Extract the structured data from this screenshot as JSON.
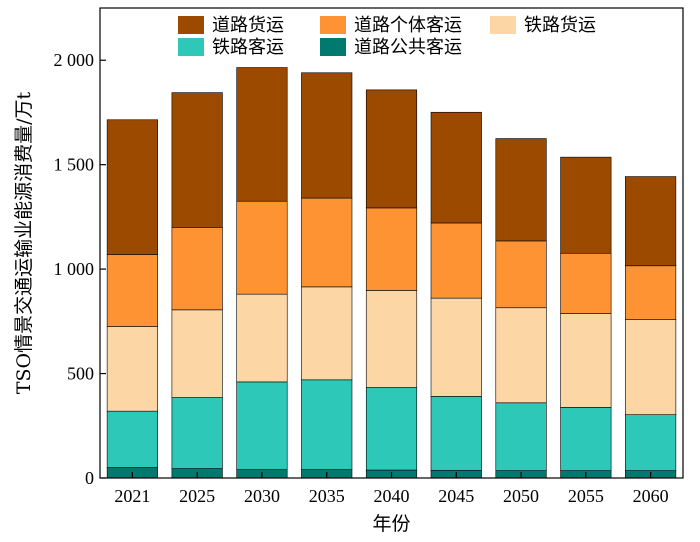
{
  "chart_data": {
    "type": "bar",
    "stacked": true,
    "xlabel": "年份",
    "ylabel": "TSO情景交通运输业能源消费量/万t",
    "categories": [
      "2021",
      "2025",
      "2030",
      "2035",
      "2040",
      "2045",
      "2050",
      "2055",
      "2060"
    ],
    "ylim": [
      0,
      2250
    ],
    "yticks": [
      0,
      500,
      1000,
      1500,
      2000
    ],
    "ytick_labels": [
      "0",
      "500",
      "1 000",
      "1 500",
      "2 000"
    ],
    "series": [
      {
        "name": "道路公共客运",
        "color": "#007a6e",
        "values": [
          50,
          45,
          40,
          40,
          38,
          36,
          35,
          35,
          35
        ]
      },
      {
        "name": "铁路客运",
        "color": "#2ec8b8",
        "values": [
          270,
          340,
          420,
          430,
          395,
          355,
          325,
          303,
          268
        ]
      },
      {
        "name": "铁路货运",
        "color": "#fdd6a5",
        "values": [
          405,
          420,
          420,
          445,
          465,
          470,
          455,
          450,
          455
        ]
      },
      {
        "name": "道路个体客运",
        "color": "#fd9332",
        "values": [
          345,
          395,
          445,
          425,
          395,
          360,
          320,
          288,
          258
        ]
      },
      {
        "name": "道路货运",
        "color": "#9c4a00",
        "values": [
          645,
          645,
          640,
          600,
          565,
          530,
          490,
          460,
          427
        ]
      }
    ],
    "legend": {
      "position": "top",
      "order": [
        "道路货运",
        "道路个体客运",
        "铁路货运",
        "铁路客运",
        "道路公共客运"
      ]
    },
    "grid": false
  }
}
